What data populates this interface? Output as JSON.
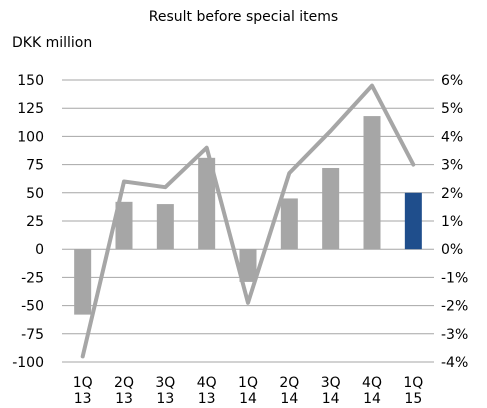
{
  "chart_data": {
    "type": "bar",
    "title": "Result before special items",
    "ylabel": "DKK million",
    "categories": [
      "1Q 13",
      "2Q 13",
      "3Q 13",
      "4Q 13",
      "1Q 14",
      "2Q 14",
      "3Q 14",
      "4Q 14",
      "1Q 15"
    ],
    "x_tick_labels": [
      [
        "1Q",
        "13"
      ],
      [
        "2Q",
        "13"
      ],
      [
        "3Q",
        "13"
      ],
      [
        "4Q",
        "13"
      ],
      [
        "1Q",
        "14"
      ],
      [
        "2Q",
        "14"
      ],
      [
        "3Q",
        "14"
      ],
      [
        "4Q",
        "14"
      ],
      [
        "1Q",
        "15"
      ]
    ],
    "series": [
      {
        "type": "bar",
        "axis": "left",
        "values": [
          -58,
          42,
          40,
          81,
          -29,
          45,
          72,
          118,
          50
        ],
        "colors": [
          "#a6a6a6",
          "#a6a6a6",
          "#a6a6a6",
          "#a6a6a6",
          "#a6a6a6",
          "#a6a6a6",
          "#a6a6a6",
          "#a6a6a6",
          "#1f4e8c"
        ]
      },
      {
        "type": "line",
        "axis": "right",
        "values": [
          -3.8,
          2.4,
          2.2,
          3.6,
          -1.9,
          2.7,
          4.2,
          5.8,
          3.0
        ],
        "color": "#a6a6a6"
      }
    ],
    "ylim": [
      -100,
      150
    ],
    "yticks": [
      -100,
      -75,
      -50,
      -25,
      0,
      25,
      50,
      75,
      100,
      125,
      150
    ],
    "y2lim": [
      -4,
      6
    ],
    "y2ticks": [
      "-4%",
      "-3%",
      "-2%",
      "-1%",
      "0%",
      "1%",
      "2%",
      "3%",
      "4%",
      "5%",
      "6%"
    ],
    "grid": true,
    "legend": "none",
    "colors": {
      "bar": "#a6a6a6",
      "bar_highlight": "#1f4e8c",
      "line": "#a6a6a6",
      "grid": "#a6a6a6"
    }
  }
}
